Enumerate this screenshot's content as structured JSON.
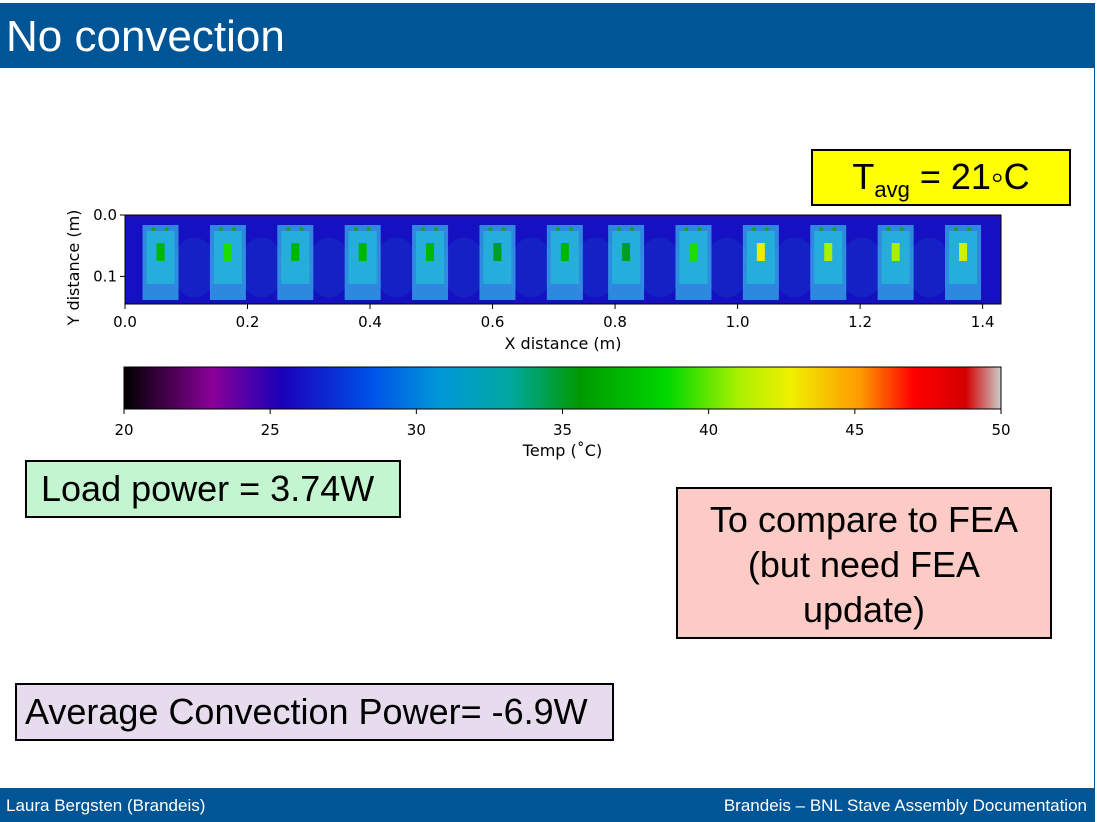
{
  "slide": {
    "title": "No convection",
    "footer_left": "Laura Bergsten (Brandeis)",
    "footer_right": "Brandeis – BNL Stave Assembly Documentation",
    "header_color": "#005596"
  },
  "boxes": {
    "tavg": {
      "T": "T",
      "sub": "avg",
      "rest": " = 21◦C",
      "color": "#ffff00"
    },
    "load_power": {
      "text": "Load power = 3.74W",
      "color": "#c3f6d0"
    },
    "fea_note": {
      "line1": "To compare to FEA",
      "line2": "(but need FEA",
      "line3": "update)",
      "color": "#fccbc6"
    },
    "convection": {
      "text": "Average Convection Power= -6.9W",
      "color": "#e6dcee"
    }
  },
  "chart_data": [
    {
      "type": "heatmap",
      "xlabel": "X distance (m)",
      "ylabel": "Y distance (m)",
      "xlim": [
        0.0,
        1.43
      ],
      "ylim": [
        0.145,
        0.0
      ],
      "x_ticks": [
        0.0,
        0.2,
        0.4,
        0.6,
        0.8,
        1.0,
        1.2,
        1.4
      ],
      "x_tick_labels": [
        "0.0",
        "0.2",
        "0.4",
        "0.6",
        "0.8",
        "1.0",
        "1.2",
        "1.4"
      ],
      "y_ticks": [
        0.0,
        0.1
      ],
      "y_tick_labels": [
        "0.0",
        "0.1"
      ],
      "background_temp_c": 26,
      "modules": [
        {
          "x": 0.058,
          "peak_temp_c": 37
        },
        {
          "x": 0.168,
          "peak_temp_c": 39
        },
        {
          "x": 0.278,
          "peak_temp_c": 37
        },
        {
          "x": 0.388,
          "peak_temp_c": 37
        },
        {
          "x": 0.498,
          "peak_temp_c": 37
        },
        {
          "x": 0.608,
          "peak_temp_c": 35
        },
        {
          "x": 0.718,
          "peak_temp_c": 37
        },
        {
          "x": 0.818,
          "peak_temp_c": 35
        },
        {
          "x": 0.928,
          "peak_temp_c": 39
        },
        {
          "x": 1.038,
          "peak_temp_c": 43
        },
        {
          "x": 1.148,
          "peak_temp_c": 41
        },
        {
          "x": 1.258,
          "peak_temp_c": 41
        },
        {
          "x": 1.368,
          "peak_temp_c": 42
        }
      ],
      "colormap": "nipy_spectral"
    },
    {
      "type": "colorbar",
      "xlabel": "Temp ($^\\circ$C)",
      "xlabel_display": "Temp (˚C)",
      "range": [
        20,
        50
      ],
      "ticks": [
        20,
        25,
        30,
        35,
        40,
        45,
        50
      ],
      "tick_labels": [
        "20",
        "25",
        "30",
        "35",
        "40",
        "45",
        "50"
      ]
    }
  ]
}
